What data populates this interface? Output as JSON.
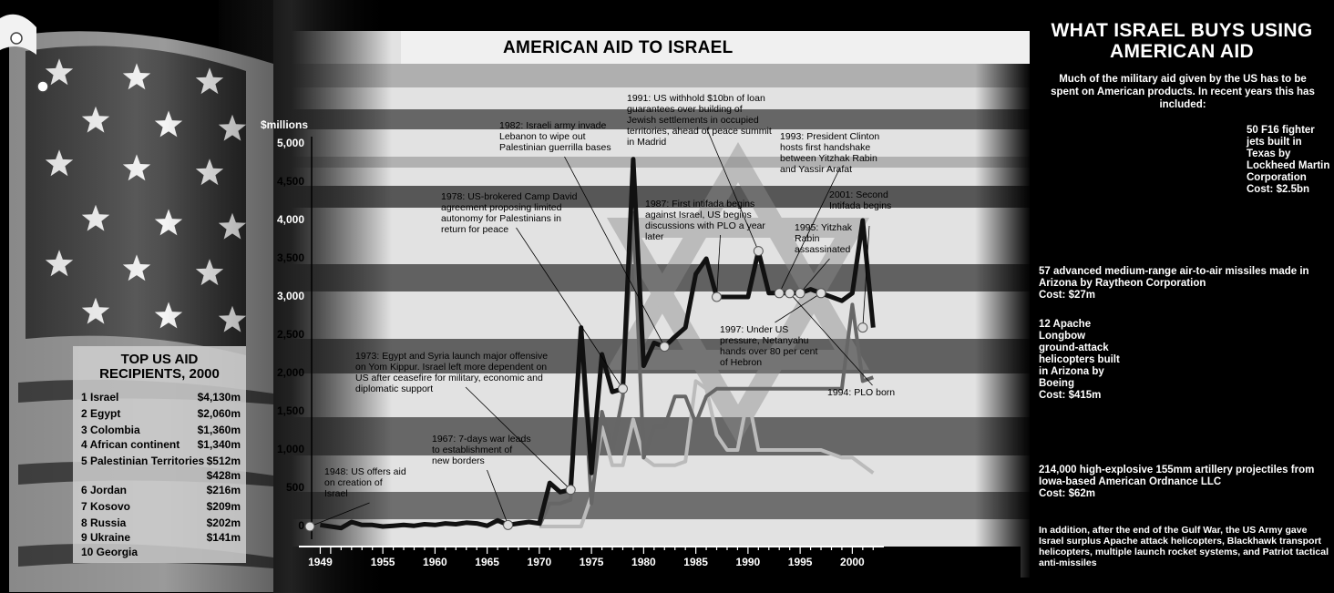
{
  "chart_data": {
    "type": "line",
    "title": "AMERICAN AID TO ISRAEL",
    "ylabel": "$millions",
    "ylim": [
      0,
      5000
    ],
    "xlim": [
      1948,
      2003
    ],
    "y_ticks": [
      "0",
      "500",
      "1,000",
      "1,500",
      "2,000",
      "2,500",
      "3,000",
      "3,500",
      "4,000",
      "4,500",
      "5,000"
    ],
    "x_ticks": [
      "1949",
      "1955",
      "1960",
      "1965",
      "1970",
      "1975",
      "1980",
      "1985",
      "1990",
      "1995",
      "2000"
    ],
    "grid": false,
    "series": [
      {
        "color": "#111111",
        "x": [
          1949,
          1950,
          1951,
          1952,
          1953,
          1954,
          1955,
          1956,
          1957,
          1958,
          1959,
          1960,
          1961,
          1962,
          1963,
          1964,
          1965,
          1966,
          1967,
          1968,
          1969,
          1970,
          1971,
          1972,
          1973,
          1974,
          1975,
          1976,
          1977,
          1978,
          1979,
          1980,
          1981,
          1982,
          1983,
          1984,
          1985,
          1986,
          1987,
          1988,
          1989,
          1990,
          1991,
          1992,
          1993,
          1994,
          1995,
          1996,
          1997,
          1998,
          1999,
          2000,
          2001,
          2002
        ],
        "values": [
          20,
          0,
          -20,
          60,
          20,
          20,
          0,
          10,
          20,
          10,
          30,
          20,
          40,
          30,
          50,
          40,
          10,
          80,
          20,
          40,
          60,
          40,
          570,
          450,
          480,
          2600,
          700,
          2250,
          1760,
          1800,
          4800,
          2100,
          2400,
          2350,
          2480,
          2600,
          3300,
          3500,
          3000,
          3000,
          3000,
          3000,
          3600,
          3050,
          3050,
          3050,
          3050,
          3100,
          3050,
          3000,
          2950,
          3050,
          4000,
          2600
        ]
      },
      {
        "color": "#666666",
        "x": [
          1970,
          1971,
          1972,
          1973,
          1974,
          1975,
          1976,
          1977,
          1978,
          1979,
          1980,
          1981,
          1982,
          1983,
          1984,
          1985,
          1986,
          1987,
          1988,
          1989,
          1990,
          1991,
          1992,
          1993,
          1994,
          1995,
          1996,
          1997,
          1998,
          1999,
          2000,
          2001,
          2002
        ],
        "values": [
          10,
          300,
          300,
          350,
          2500,
          300,
          1500,
          1000,
          1700,
          4100,
          900,
          1300,
          1300,
          1700,
          1700,
          1350,
          1700,
          1800,
          1800,
          1800,
          1800,
          1800,
          1800,
          1800,
          1800,
          1800,
          1800,
          1800,
          1800,
          1800,
          2900,
          1900,
          1950
        ]
      },
      {
        "color": "#bbbbbb",
        "x": [
          1970,
          1971,
          1972,
          1973,
          1974,
          1975,
          1976,
          1977,
          1978,
          1979,
          1980,
          1981,
          1982,
          1983,
          1984,
          1985,
          1986,
          1987,
          1988,
          1989,
          1990,
          1991,
          1992,
          1993,
          1994,
          1995,
          1996,
          1997,
          1998,
          1999,
          2000,
          2001,
          2002
        ],
        "values": [
          0,
          0,
          0,
          0,
          0,
          400,
          1300,
          800,
          800,
          1400,
          900,
          800,
          800,
          800,
          850,
          1900,
          1800,
          1200,
          1000,
          1000,
          1700,
          1000,
          1000,
          1000,
          1000,
          1000,
          1000,
          1000,
          950,
          900,
          900,
          800,
          700
        ]
      }
    ],
    "annotations": [
      {
        "text": "1948: US offers aid on creation of Israel",
        "x": 1948,
        "y": 0
      },
      {
        "text": "1967: 7-days war leads to establishment of new borders",
        "x": 1967,
        "y": 20
      },
      {
        "text": "1973: Egypt and Syria launch major offensive on Yom Kippur. Israel left more dependent on US after ceasefire for military, economic and diplomatic support",
        "x": 1973,
        "y": 480
      },
      {
        "text": "1978: US-brokered Camp David agreement proposing limited autonomy for Palestinians in return for peace",
        "x": 1978,
        "y": 1800
      },
      {
        "text": "1982: Israeli army invade Lebanon to wipe out Palestinian guerrilla bases",
        "x": 1982,
        "y": 2350
      },
      {
        "text": "1987: First intifada begins against Israel, US begins discussions with PLO a year later",
        "x": 1987,
        "y": 3000
      },
      {
        "text": "1991: US withhold $10bn of loan guarantees over building of Jewish settlements in occupied territories, ahead of peace summit in Madrid",
        "x": 1991,
        "y": 3600
      },
      {
        "text": "1993: President Clinton hosts first handshake between Yitzhak Rabin and Yassir Arafat",
        "x": 1993,
        "y": 3050
      },
      {
        "text": "1994: PLO born",
        "x": 1994,
        "y": 3050
      },
      {
        "text": "1995: Yitzhak Rabin assassinated",
        "x": 1995,
        "y": 3050
      },
      {
        "text": "1997: Under US pressure, Netanyahu hands over 80 per cent of Hebron",
        "x": 1997,
        "y": 3050
      },
      {
        "text": "2001: Second Intifada begins",
        "x": 2001,
        "y": 2600
      }
    ]
  },
  "recipients": {
    "title_line1": "TOP US AID",
    "title_line2": "RECIPIENTS, 2000",
    "rows": [
      {
        "name": "1 Israel",
        "amount": "$4,130m"
      },
      {
        "name": "2 Egypt",
        "amount": "$2,060m"
      },
      {
        "name": "3 Colombia",
        "amount": "$1,360m"
      },
      {
        "name": "4 African continent",
        "amount": "$1,340m"
      },
      {
        "name": "5 Palestinian Territories",
        "amount": "$512m"
      },
      {
        "name": "",
        "amount": "$428m"
      },
      {
        "name": "6 Jordan",
        "amount": "$216m"
      },
      {
        "name": "7 Kosovo",
        "amount": "$209m"
      },
      {
        "name": "8 Russia",
        "amount": "$202m"
      },
      {
        "name": "9 Ukraine",
        "amount": "$141m"
      },
      {
        "name": "10 Georgia",
        "amount": ""
      }
    ]
  },
  "buys": {
    "title_line1": "WHAT ISRAEL BUYS USING",
    "title_line2": "AMERICAN AID",
    "intro": "Much of the military aid given by the US has to be spent on American products. In recent years this has included:",
    "item1": "50 F16 fighter jets built in Texas by Lockheed Martin Corporation",
    "item1_cost": "Cost: $2.5bn",
    "item2": "57 advanced medium-range air-to-air missiles made in Arizona by Raytheon Corporation",
    "item2_cost": "Cost: $27m",
    "item3": "12 Apache Longbow ground-attack helicopters built in Arizona by Boeing",
    "item3_cost": "Cost: $415m",
    "item4": "214,000 high-explosive 155mm artillery projectiles from Iowa-based American Ordnance LLC",
    "item4_cost": "Cost: $62m",
    "footer": "In addition, after the end of the Gulf War, the US Army gave Israel surplus Apache attack helicopters, Blackhawk transport helicopters, multiple launch rocket systems, and Patriot tactical anti-missiles"
  }
}
